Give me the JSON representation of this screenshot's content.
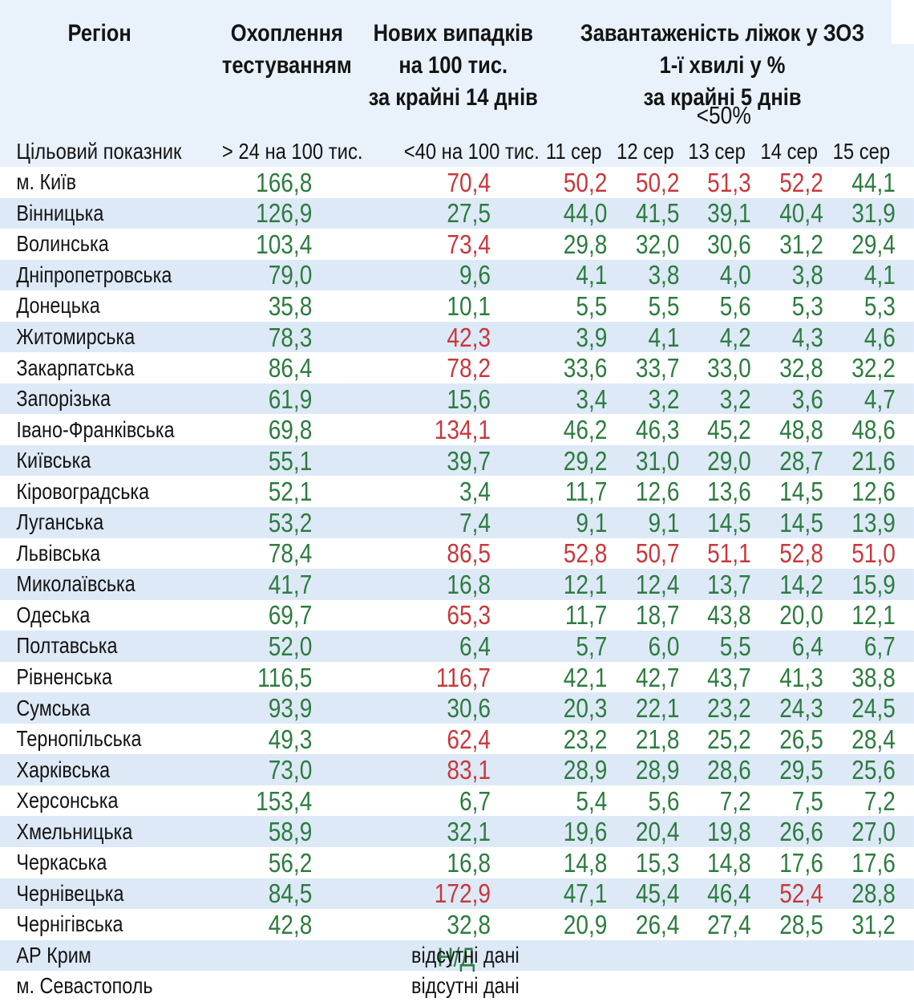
{
  "header": {
    "region": "Регіон",
    "testing_l1": "Охоплення",
    "testing_l2": "тестуванням",
    "cases_l1": "Нових випадків",
    "cases_l2": "на 100 тис.",
    "cases_l3": "за крайні 14 днів",
    "beds_l1": "Завантаженість ліжок у ЗОЗ",
    "beds_l2": "1-ї хвилі у %",
    "beds_l3": "за крайні 5 днів",
    "beds_threshold": "<50%",
    "target_label": "Цільовий показник",
    "target_testing": "> 24 на 100 тис.",
    "target_cases": "<40 на 100 тис.",
    "dates": [
      "11 сер",
      "12 сер",
      "13 сер",
      "14 сер",
      "15 сер"
    ]
  },
  "missing_text": "відсутні дані",
  "na_overlay_text": "Н/Д",
  "colors": {
    "good": "#2d7c40",
    "bad": "#c8383c",
    "stripe_bg": "#dde9f6",
    "header_bg": "#e9f1fb",
    "text": "#141414"
  },
  "thresholds": {
    "testing_min": 24,
    "cases_max": 40,
    "beds_max": 50
  },
  "chart_data": {
    "type": "table",
    "title": "Завантаженість ліжок у ЗОЗ 1-ї хвилі у % за крайні 5 днів",
    "columns": [
      "Регіон",
      "Охоплення тестуванням",
      "Нових випадків на 100 тис. за крайні 14 днів",
      "11 сер",
      "12 сер",
      "13 сер",
      "14 сер",
      "15 сер"
    ],
    "rows": [
      {
        "region": "м. Київ",
        "testing": 166.8,
        "cases": 70.4,
        "beds": [
          50.2,
          50.2,
          51.3,
          52.2,
          44.1
        ]
      },
      {
        "region": "Вінницька",
        "testing": 126.9,
        "cases": 27.5,
        "beds": [
          44.0,
          41.5,
          39.1,
          40.4,
          31.9
        ]
      },
      {
        "region": "Волинська",
        "testing": 103.4,
        "cases": 73.4,
        "beds": [
          29.8,
          32.0,
          30.6,
          31.2,
          29.4
        ]
      },
      {
        "region": "Дніпропетровська",
        "testing": 79.0,
        "cases": 9.6,
        "beds": [
          4.1,
          3.8,
          4.0,
          3.8,
          4.1
        ]
      },
      {
        "region": "Донецька",
        "testing": 35.8,
        "cases": 10.1,
        "beds": [
          5.5,
          5.5,
          5.6,
          5.3,
          5.3
        ]
      },
      {
        "region": "Житомирська",
        "testing": 78.3,
        "cases": 42.3,
        "beds": [
          3.9,
          4.1,
          4.2,
          4.3,
          4.6
        ]
      },
      {
        "region": "Закарпатська",
        "testing": 86.4,
        "cases": 78.2,
        "beds": [
          33.6,
          33.7,
          33.0,
          32.8,
          32.2
        ]
      },
      {
        "region": "Запорізька",
        "testing": 61.9,
        "cases": 15.6,
        "beds": [
          3.4,
          3.2,
          3.2,
          3.6,
          4.7
        ]
      },
      {
        "region": "Івано-Франківська",
        "testing": 69.8,
        "cases": 134.1,
        "beds": [
          46.2,
          46.3,
          45.2,
          48.8,
          48.6
        ]
      },
      {
        "region": "Київська",
        "testing": 55.1,
        "cases": 39.7,
        "beds": [
          29.2,
          31.0,
          29.0,
          28.7,
          21.6
        ]
      },
      {
        "region": "Кіровоградська",
        "testing": 52.1,
        "cases": 3.4,
        "beds": [
          11.7,
          12.6,
          13.6,
          14.5,
          12.6
        ]
      },
      {
        "region": "Луганська",
        "testing": 53.2,
        "cases": 7.4,
        "beds": [
          9.1,
          9.1,
          14.5,
          14.5,
          13.9
        ]
      },
      {
        "region": "Львівська",
        "testing": 78.4,
        "cases": 86.5,
        "beds": [
          52.8,
          50.7,
          51.1,
          52.8,
          51.0
        ]
      },
      {
        "region": "Миколаївська",
        "testing": 41.7,
        "cases": 16.8,
        "beds": [
          12.1,
          12.4,
          13.7,
          14.2,
          15.9
        ]
      },
      {
        "region": "Одеська",
        "testing": 69.7,
        "cases": 65.3,
        "beds": [
          11.7,
          18.7,
          43.8,
          20.0,
          12.1
        ]
      },
      {
        "region": "Полтавська",
        "testing": 52.0,
        "cases": 6.4,
        "beds": [
          5.7,
          6.0,
          5.5,
          6.4,
          6.7
        ]
      },
      {
        "region": "Рівненська",
        "testing": 116.5,
        "cases": 116.7,
        "beds": [
          42.1,
          42.7,
          43.7,
          41.3,
          38.8
        ]
      },
      {
        "region": "Сумська",
        "testing": 93.9,
        "cases": 30.6,
        "beds": [
          20.3,
          22.1,
          23.2,
          24.3,
          24.5
        ]
      },
      {
        "region": "Тернопільська",
        "testing": 49.3,
        "cases": 62.4,
        "beds": [
          23.2,
          21.8,
          25.2,
          26.5,
          28.4
        ]
      },
      {
        "region": "Харківська",
        "testing": 73.0,
        "cases": 83.1,
        "beds": [
          28.9,
          28.9,
          28.6,
          29.5,
          25.6
        ]
      },
      {
        "region": "Херсонська",
        "testing": 153.4,
        "cases": 6.7,
        "beds": [
          5.4,
          5.6,
          7.2,
          7.5,
          7.2
        ]
      },
      {
        "region": "Хмельницька",
        "testing": 58.9,
        "cases": 32.1,
        "beds": [
          19.6,
          20.4,
          19.8,
          26.6,
          27.0
        ]
      },
      {
        "region": "Черкаська",
        "testing": 56.2,
        "cases": 16.8,
        "beds": [
          14.8,
          15.3,
          14.8,
          17.6,
          17.6
        ]
      },
      {
        "region": "Чернівецька",
        "testing": 84.5,
        "cases": 172.9,
        "beds": [
          47.1,
          45.4,
          46.4,
          52.4,
          28.8
        ]
      },
      {
        "region": "Чернігівська",
        "testing": 42.8,
        "cases": 32.8,
        "beds": [
          20.9,
          26.4,
          27.4,
          28.5,
          31.2
        ]
      },
      {
        "region": "АР Крим",
        "missing": true,
        "na_overlay": true
      },
      {
        "region": "м. Севастополь",
        "missing": true
      }
    ]
  }
}
